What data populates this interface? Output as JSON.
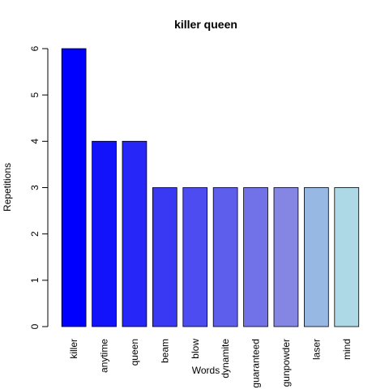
{
  "chart_data": {
    "type": "bar",
    "title": "killer queen",
    "xlabel": "Words",
    "ylabel": "Repetitions",
    "categories": [
      "killer",
      "anytime",
      "queen",
      "beam",
      "blow",
      "dynamite",
      "guaranteed",
      "gunpowder",
      "laser",
      "mind"
    ],
    "values": [
      6,
      4,
      4,
      3,
      3,
      3,
      3,
      3,
      3,
      3
    ],
    "colors": [
      "#0000FF",
      "#1313FB",
      "#2626F8",
      "#3939F4",
      "#4C4CF0",
      "#5E5EEC",
      "#7272E8",
      "#8585E4",
      "#98B8E4",
      "#ADD8E6"
    ],
    "ylim": [
      0,
      6
    ],
    "yticks": [
      0,
      1,
      2,
      3,
      4,
      5,
      6
    ],
    "grid": false,
    "legend": "none"
  }
}
